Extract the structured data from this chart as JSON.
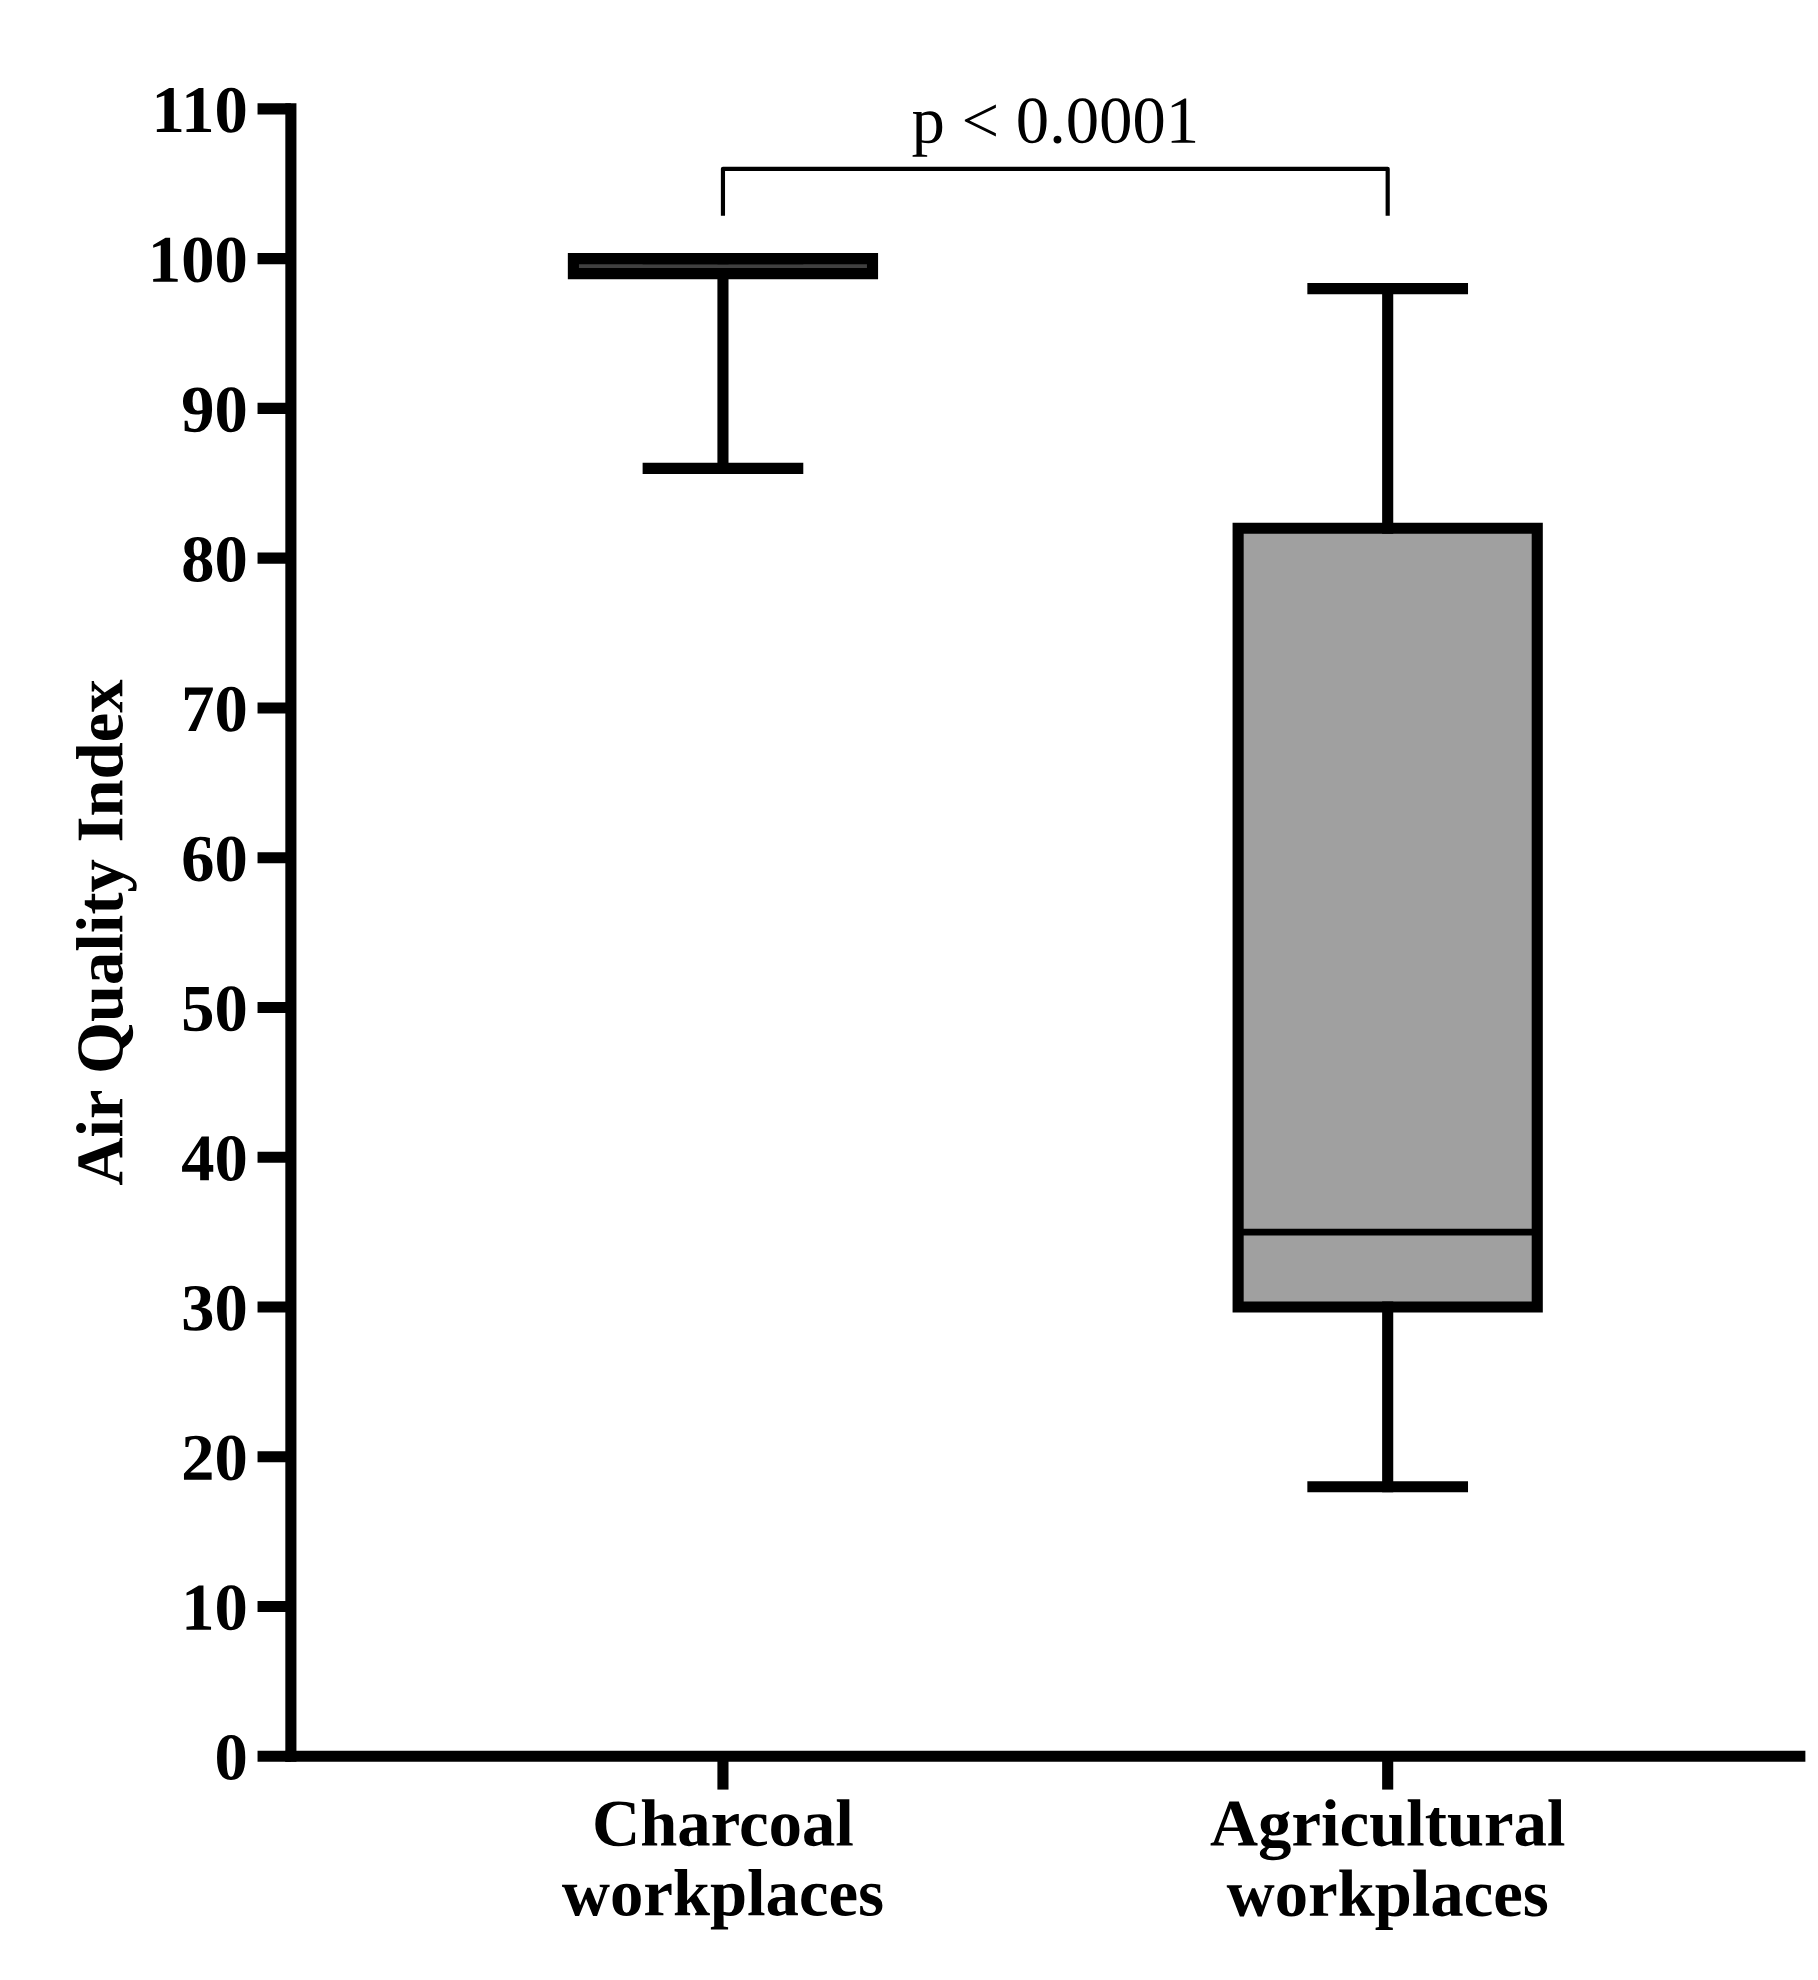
{
  "chart_data": {
    "type": "box",
    "ylabel": "Air Quality Index",
    "categories": [
      "Charcoal\nworkplaces",
      "Agricultural\nworkplaces"
    ],
    "boxes": [
      {
        "low": 86,
        "q1": 99,
        "median": 100,
        "q3": 100,
        "high": 100
      },
      {
        "low": 18,
        "q1": 30,
        "median": 35,
        "q3": 82,
        "high": 98
      }
    ],
    "colors": [
      "#404040",
      "#a0a0a0"
    ],
    "ylim": [
      0,
      110
    ],
    "yticks": [
      0,
      10,
      20,
      30,
      40,
      50,
      60,
      70,
      80,
      90,
      100,
      110
    ],
    "grid": false,
    "annotations": [
      "p < 0.0001"
    ]
  }
}
